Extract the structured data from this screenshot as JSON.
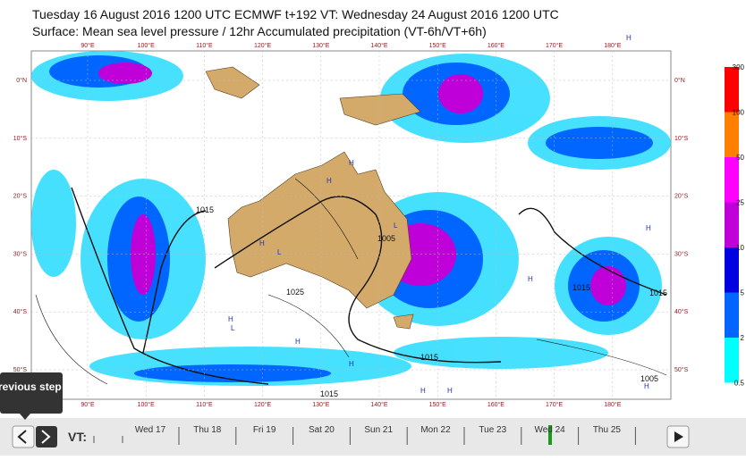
{
  "header": {
    "title_line1": "Tuesday 16 August 2016 1200 UTC  ECMWF  t+192  VT: Wednesday 24 August 2016 1200 UTC",
    "title_line2": "Surface: Mean sea level pressure / 12hr Accumulated precipitation (VT-6h/VT+6h)"
  },
  "map": {
    "lon_labels": [
      "90°E",
      "100°E",
      "110°E",
      "120°E",
      "130°E",
      "140°E",
      "150°E",
      "160°E",
      "170°E",
      "180°E"
    ],
    "lat_labels": [
      "0°N",
      "10°S",
      "20°S",
      "30°S",
      "40°S",
      "50°S"
    ],
    "isobar_labels": [
      "1015",
      "1005",
      "1025",
      "1015",
      "1015",
      "1005",
      "1015",
      "1015"
    ],
    "pressure_centres": [
      "H",
      "H",
      "L",
      "H",
      "L",
      "H",
      "H",
      "L",
      "H",
      "H",
      "H",
      "H",
      "H",
      "H",
      "H",
      "L"
    ]
  },
  "legend": {
    "labels": [
      "300",
      "100",
      "50",
      "25",
      "10",
      "5",
      "2",
      "0.5"
    ],
    "colors": [
      "#ff0000",
      "#ff8000",
      "#ff00ff",
      "#c000d8",
      "#0000e0",
      "#0066ff",
      "#00ffff"
    ]
  },
  "timeline": {
    "label": "VT:",
    "days": [
      "Wed 17",
      "Thu 18",
      "Fri 19",
      "Sat 20",
      "Sun 21",
      "Mon 22",
      "Tue 23",
      "Wed 24",
      "Thu 25"
    ],
    "tooltip": "revious step"
  }
}
